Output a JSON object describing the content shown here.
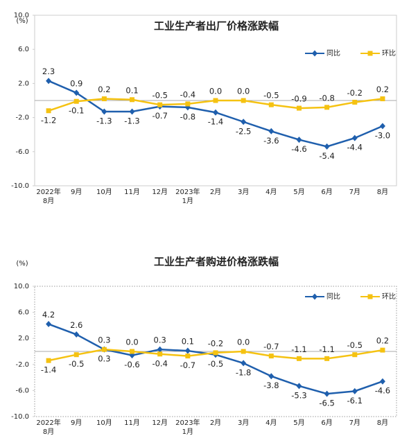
{
  "chart_data": [
    {
      "type": "line",
      "title": "工业生产者出厂价格涨跌幅",
      "unit_label": "(%)",
      "categories": [
        "2022年\n8月",
        "9月",
        "10月",
        "11月",
        "12月",
        "2023年\n1月",
        "2月",
        "3月",
        "4月",
        "5月",
        "6月",
        "7月",
        "8月"
      ],
      "series": [
        {
          "name": "同比",
          "color": "#1f5fad",
          "marker": "diamond",
          "values": [
            2.3,
            0.9,
            -1.3,
            -1.3,
            -0.7,
            -0.8,
            -1.4,
            -2.5,
            -3.6,
            -4.6,
            -5.4,
            -4.4,
            -3.0
          ],
          "value_labels": [
            "2.3",
            "0.9",
            "-1.3",
            "-1.3",
            "-0.7",
            "-0.8",
            "-1.4",
            "-2.5",
            "-3.6",
            "-4.6",
            "-5.4",
            "-4.4",
            "-3.0"
          ]
        },
        {
          "name": "环比",
          "color": "#f5c211",
          "marker": "square",
          "values": [
            -1.2,
            -0.1,
            0.2,
            0.1,
            -0.5,
            -0.4,
            0.0,
            0.0,
            -0.5,
            -0.9,
            -0.8,
            -0.2,
            0.2
          ],
          "value_labels": [
            "-1.2",
            "-0.1",
            "0.2",
            "0.1",
            "-0.5",
            "-0.4",
            "0.0",
            "0.0",
            "-0.5",
            "-0.9",
            "-0.8",
            "-0.2",
            "0.2"
          ]
        }
      ],
      "ylim": [
        -10,
        10
      ],
      "yticks": [
        {
          "value": 10,
          "label": "10.0"
        },
        {
          "value": 6,
          "label": "6.0"
        },
        {
          "value": 2,
          "label": "2.0"
        },
        {
          "value": -2,
          "label": "-2.0"
        },
        {
          "value": -6,
          "label": "-6.0"
        },
        {
          "value": -10,
          "label": "-10.0"
        }
      ],
      "zero_line": true,
      "border": "solid",
      "legend": "top-right"
    },
    {
      "type": "line",
      "title": "工业生产者购进价格涨跌幅",
      "unit_label": "(%)",
      "categories": [
        "2022年\n8月",
        "9月",
        "10月",
        "11月",
        "12月",
        "2023年\n1月",
        "2月",
        "3月",
        "4月",
        "5月",
        "6月",
        "7月",
        "8月"
      ],
      "series": [
        {
          "name": "同比",
          "color": "#1f5fad",
          "marker": "diamond",
          "values": [
            4.2,
            2.6,
            0.3,
            -0.6,
            0.3,
            0.1,
            -0.5,
            -1.8,
            -3.8,
            -5.3,
            -6.5,
            -6.1,
            -4.6
          ],
          "value_labels": [
            "4.2",
            "2.6",
            "0.3",
            "-0.6",
            "0.3",
            "0.1",
            "-0.5",
            "-1.8",
            "-3.8",
            "-5.3",
            "-6.5",
            "-6.1",
            "-4.6"
          ]
        },
        {
          "name": "环比",
          "color": "#f5c211",
          "marker": "square",
          "values": [
            -1.4,
            -0.5,
            0.3,
            0.0,
            -0.4,
            -0.7,
            -0.2,
            0.0,
            -0.7,
            -1.1,
            -1.1,
            -0.5,
            0.2
          ],
          "value_labels": [
            "-1.4",
            "-0.5",
            "0.3",
            "0.0",
            "-0.4",
            "-0.7",
            "-0.2",
            "0.0",
            "-0.7",
            "-1.1",
            "-1.1",
            "-0.5",
            "0.2"
          ]
        }
      ],
      "ylim": [
        -10,
        10
      ],
      "yticks": [
        {
          "value": 10,
          "label": "10.0"
        },
        {
          "value": 6,
          "label": "6.0"
        },
        {
          "value": 2,
          "label": "2.0"
        },
        {
          "value": -2,
          "label": "-2.0"
        },
        {
          "value": -6,
          "label": "-6.0"
        },
        {
          "value": -10,
          "label": "-10.0"
        }
      ],
      "zero_line": true,
      "border": "dotted",
      "legend": "top-right"
    }
  ]
}
